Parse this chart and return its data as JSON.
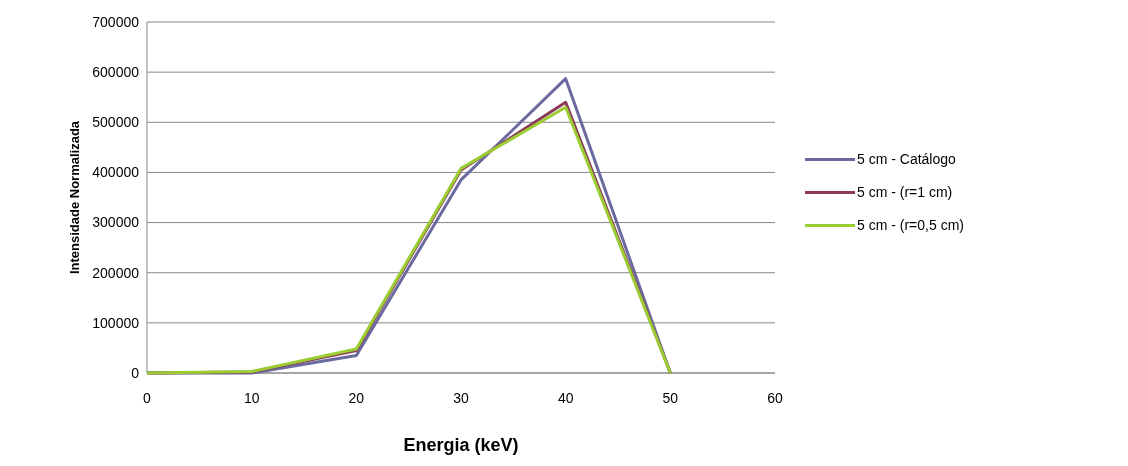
{
  "chart_data": {
    "type": "line",
    "xlabel": "Energia (keV)",
    "ylabel": "Intensidade Normalizada",
    "x": [
      0,
      10,
      20,
      30,
      40,
      50
    ],
    "series": [
      {
        "name": "5 cm - Catálogo",
        "color": "#6a6aa0",
        "values": [
          0,
          0,
          35000,
          385000,
          587000,
          0
        ]
      },
      {
        "name": "5 cm - (r=1 cm)",
        "color": "#8b3a5a",
        "values": [
          0,
          2000,
          45000,
          405000,
          540000,
          0
        ]
      },
      {
        "name": "5 cm - (r=0,5 cm)",
        "color": "#9acd32",
        "values": [
          0,
          3000,
          48000,
          408000,
          530000,
          0
        ]
      }
    ],
    "xlim": [
      0,
      60
    ],
    "xticks": [
      0,
      10,
      20,
      30,
      40,
      50,
      60
    ],
    "ylim": [
      0,
      700000
    ],
    "yticks": [
      0,
      100000,
      200000,
      300000,
      400000,
      500000,
      600000,
      700000
    ],
    "grid": "y",
    "legend": "right",
    "marker": "none",
    "line_style": "solid"
  }
}
